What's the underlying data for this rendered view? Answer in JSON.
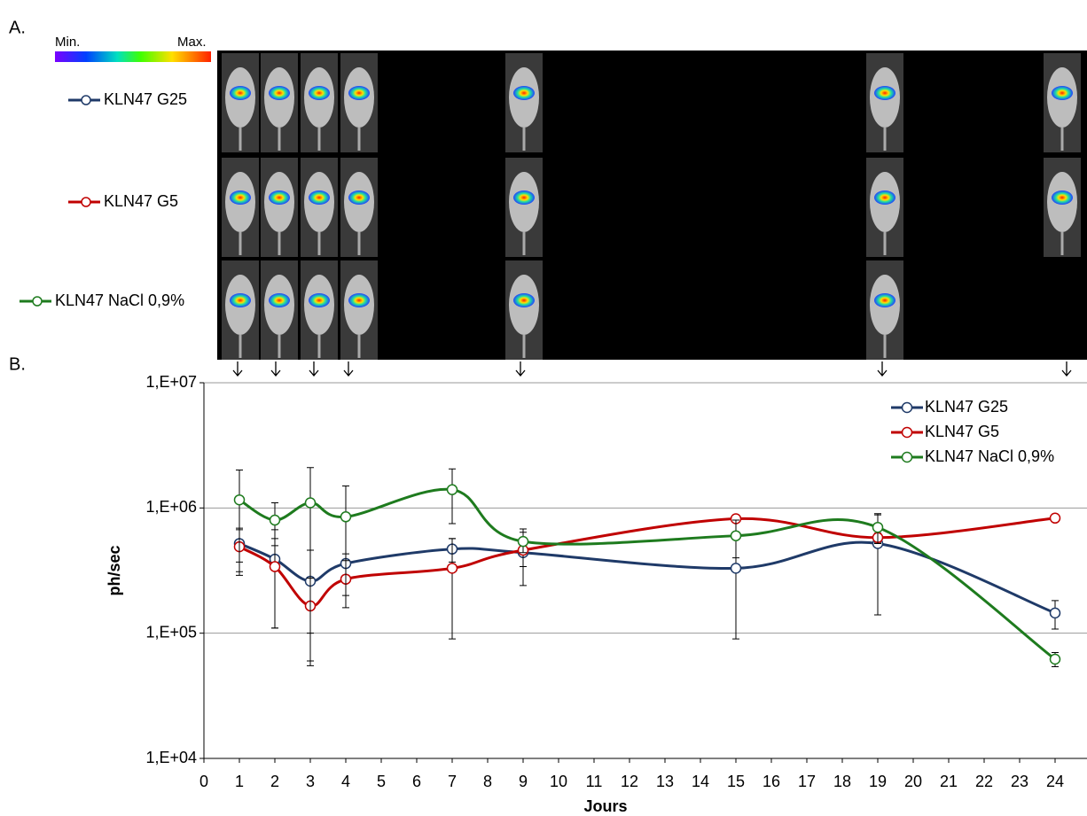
{
  "panel_labels": [
    "A.",
    "B."
  ],
  "colorbar": {
    "min": "Min.",
    "max": "Max."
  },
  "chart_data": {
    "type": "line",
    "x_label": "Jours",
    "y_label": "ph/sec",
    "x": [
      1,
      2,
      3,
      4,
      7,
      9,
      15,
      19,
      24
    ],
    "series": [
      {
        "name": "KLN47 G25",
        "color": "#1f3a68",
        "values": [
          520000,
          390000,
          260000,
          360000,
          470000,
          440000,
          330000,
          520000,
          145000
        ],
        "errors": [
          150000,
          280000,
          200000,
          70000,
          100000,
          100000,
          240000,
          380000,
          37000
        ]
      },
      {
        "name": "KLN47 G5",
        "color": "#c00000",
        "values": [
          490000,
          340000,
          165000,
          270000,
          330000,
          460000,
          820000,
          580000,
          830000
        ],
        "errors": [
          200000,
          230000,
          110000,
          110000,
          240000,
          220000,
          50000,
          50000,
          30000
        ]
      },
      {
        "name": "KLN47 NaCl 0,9%",
        "color": "#1e7b1e",
        "values": [
          1160000,
          800000,
          1100000,
          850000,
          1400000,
          540000,
          600000,
          700000,
          62000
        ],
        "errors": [
          850000,
          300000,
          1000000,
          650000,
          650000,
          100000,
          200000,
          180000,
          8000
        ]
      }
    ],
    "xlim": [
      0,
      24.9
    ],
    "xticks": [
      0,
      1,
      2,
      3,
      4,
      5,
      6,
      7,
      8,
      9,
      10,
      11,
      12,
      13,
      14,
      15,
      16,
      17,
      18,
      19,
      20,
      21,
      22,
      23,
      24
    ],
    "ylim": [
      10000,
      10000000
    ],
    "yticks": [
      {
        "value": 10000,
        "label": "1,E+04"
      },
      {
        "value": 100000,
        "label": "1,E+05"
      },
      {
        "value": 1000000,
        "label": "1,E+06"
      },
      {
        "value": 10000000,
        "label": "1,E+07"
      }
    ],
    "log_y": true,
    "grid": true,
    "legend": "top-right"
  }
}
